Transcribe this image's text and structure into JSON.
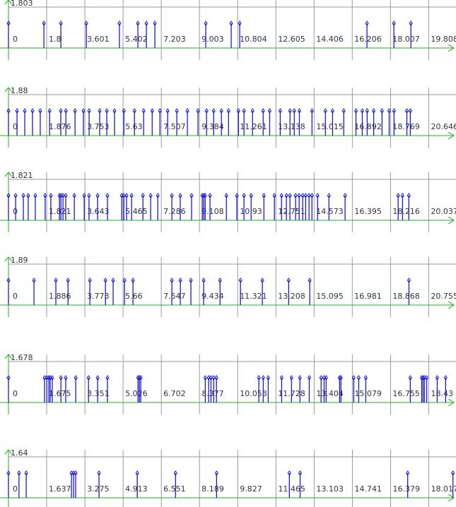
{
  "chart_data": [
    {
      "type": "stem",
      "y_label": "1.803",
      "color": "#1a1ad0",
      "axis_color": "#1fb21f",
      "grid": true,
      "xlim": [
        0,
        20.93
      ],
      "ylim": [
        0,
        1
      ],
      "xticks": [
        0,
        1.8,
        3.601,
        5.402,
        7.203,
        9.003,
        10.804,
        12.605,
        14.406,
        16.206,
        18.007,
        19.808
      ],
      "x": [
        0,
        1.67,
        2.47,
        3.67,
        5.23,
        6.1,
        6.5,
        6.9,
        9.3,
        10.5,
        10.9,
        16.9,
        18.17,
        18.97
      ],
      "values": [
        1,
        1,
        1,
        1,
        1,
        1,
        1,
        1,
        1,
        1,
        1,
        1,
        1,
        1
      ]
    },
    {
      "type": "stem",
      "y_label": "1.88",
      "color": "#1a1ad0",
      "axis_color": "#1fb21f",
      "grid": true,
      "xlim": [
        0,
        21.81
      ],
      "ylim": [
        0,
        1
      ],
      "xticks": [
        0,
        1.876,
        3.753,
        5.63,
        7.507,
        9.384,
        11.261,
        13.138,
        15.015,
        16.892,
        18.769,
        20.646
      ],
      "x": [
        0,
        0.42,
        0.8,
        1.18,
        1.56,
        2.02,
        2.57,
        2.82,
        3.27,
        3.68,
        3.96,
        4.48,
        4.83,
        5.21,
        5.67,
        6.19,
        6.64,
        7.06,
        7.44,
        7.82,
        8.27,
        8.79,
        9.31,
        9.73,
        10.08,
        10.46,
        10.81,
        11.3,
        11.57,
        11.99,
        12.51,
        12.83,
        13.35,
        13.83,
        14.04,
        14.29,
        14.91,
        15.57,
        15.92,
        16.47,
        17.07,
        17.38,
        17.62,
        17.94,
        18.35,
        18.7,
        18.94,
        19.57,
        19.74
      ],
      "values": [
        1,
        1,
        1,
        1,
        1,
        1,
        1,
        1,
        1,
        1,
        1,
        1,
        1,
        1,
        1,
        1,
        1,
        1,
        1,
        1,
        1,
        1,
        1,
        1,
        1,
        1,
        1,
        1,
        1,
        1,
        1,
        1,
        1,
        1,
        1,
        1,
        1,
        1,
        1,
        1,
        1,
        1,
        1,
        1,
        1,
        1,
        1,
        1,
        1
      ]
    },
    {
      "type": "stem",
      "y_label": "1.821",
      "color": "#1a1ad0",
      "axis_color": "#1fb21f",
      "grid": true,
      "xlim": [
        0,
        21.17
      ],
      "ylim": [
        0,
        1
      ],
      "xticks": [
        0,
        1.821,
        3.643,
        5.465,
        7.286,
        9.108,
        10.93,
        12.751,
        14.573,
        16.395,
        18.216,
        20.037
      ],
      "x": [
        0,
        0.34,
        0.71,
        0.94,
        1.28,
        1.75,
        2.02,
        2.43,
        2.5,
        2.6,
        2.73,
        3.14,
        3.61,
        3.84,
        4.25,
        4.72,
        5.4,
        5.5,
        5.63,
        5.87,
        6.41,
        6.78,
        7.12,
        7.79,
        8.19,
        8.73,
        9.24,
        9.31,
        9.38,
        9.61,
        10.39,
        10.89,
        11.23,
        11.57,
        12.18,
        12.68,
        13.02,
        13.25,
        13.42,
        13.69,
        13.86,
        14.03,
        14.17,
        14.33,
        14.47,
        14.74,
        15.28,
        16.05,
        18.58,
        18.79,
        19.09
      ],
      "values": [
        1,
        1,
        1,
        1,
        1,
        1,
        1,
        1,
        1,
        1,
        1,
        1,
        1,
        1,
        1,
        1,
        1,
        1,
        1,
        1,
        1,
        1,
        1,
        1,
        1,
        1,
        1,
        1,
        1,
        1,
        1,
        1,
        1,
        1,
        1,
        1,
        1,
        1,
        1,
        1,
        1,
        1,
        1,
        1,
        1,
        1,
        1,
        1,
        1,
        1,
        1
      ]
    },
    {
      "type": "stem",
      "y_label": "1.89",
      "color": "#1a1ad0",
      "axis_color": "#1fb21f",
      "grid": true,
      "xlim": [
        0,
        21.93
      ],
      "ylim": [
        0,
        1
      ],
      "xticks": [
        0,
        1.886,
        3.773,
        5.66,
        7.547,
        9.434,
        11.321,
        13.208,
        15.095,
        16.981,
        18.868,
        20.755
      ],
      "x": [
        0,
        1.26,
        2.34,
        2.94,
        4.02,
        4.79,
        5.17,
        5.73,
        6.15,
        8.07,
        8.49,
        9.01,
        9.64,
        10.45,
        11.46,
        12.54,
        13.84,
        14.88,
        19.78
      ],
      "values": [
        1,
        1,
        1,
        1,
        1,
        1,
        1,
        1,
        1,
        1,
        1,
        1,
        1,
        1,
        1,
        1,
        1,
        1,
        1
      ]
    },
    {
      "type": "stem",
      "y_label": "1.678",
      "color": "#1a1ad0",
      "axis_color": "#1fb21f",
      "grid": true,
      "xlim": [
        0,
        19.47
      ],
      "ylim": [
        0,
        1
      ],
      "xticks": [
        0,
        1.675,
        3.351,
        5.026,
        6.702,
        8.377,
        10.053,
        11.728,
        13.404,
        15.079,
        16.755,
        18.43
      ],
      "x": [
        0,
        1.58,
        1.68,
        1.77,
        1.83,
        1.92,
        2.3,
        2.51,
        2.95,
        3.51,
        3.91,
        4.34,
        5.68,
        5.74,
        5.8,
        8.63,
        8.78,
        8.88,
        9.0,
        9.12,
        10.98,
        11.17,
        11.39,
        11.98,
        12.41,
        12.78,
        13.19,
        13.71,
        13.84,
        13.93,
        14.52,
        14.58,
        15.14,
        15.36,
        15.67,
        17.62,
        18.12,
        18.18,
        18.24,
        18.34,
        18.8,
        19.17
      ],
      "values": [
        1,
        1,
        1,
        1,
        1,
        1,
        1,
        1,
        1,
        1,
        1,
        1,
        1,
        1,
        1,
        1,
        1,
        1,
        1,
        1,
        1,
        1,
        1,
        1,
        1,
        1,
        1,
        1,
        1,
        1,
        1,
        1,
        1,
        1,
        1,
        1,
        1,
        1,
        1,
        1,
        1,
        1
      ]
    },
    {
      "type": "stem",
      "y_label": "1.64",
      "color": "#1a1ad0",
      "axis_color": "#1fb21f",
      "grid": true,
      "xlim": [
        0,
        19.03
      ],
      "ylim": [
        0,
        1
      ],
      "xticks": [
        0,
        1.637,
        3.275,
        4.913,
        6.551,
        8.189,
        9.827,
        11.465,
        13.103,
        14.741,
        16.379,
        18.017
      ],
      "x": [
        0,
        0.45,
        0.76,
        2.7,
        2.79,
        2.88,
        3.88,
        5.52,
        7.16,
        8.92,
        12.04,
        12.5,
        17.11,
        19.05
      ],
      "values": [
        1,
        1,
        1,
        1,
        1,
        1,
        1,
        1,
        1,
        1,
        1,
        1,
        1,
        1
      ]
    }
  ]
}
